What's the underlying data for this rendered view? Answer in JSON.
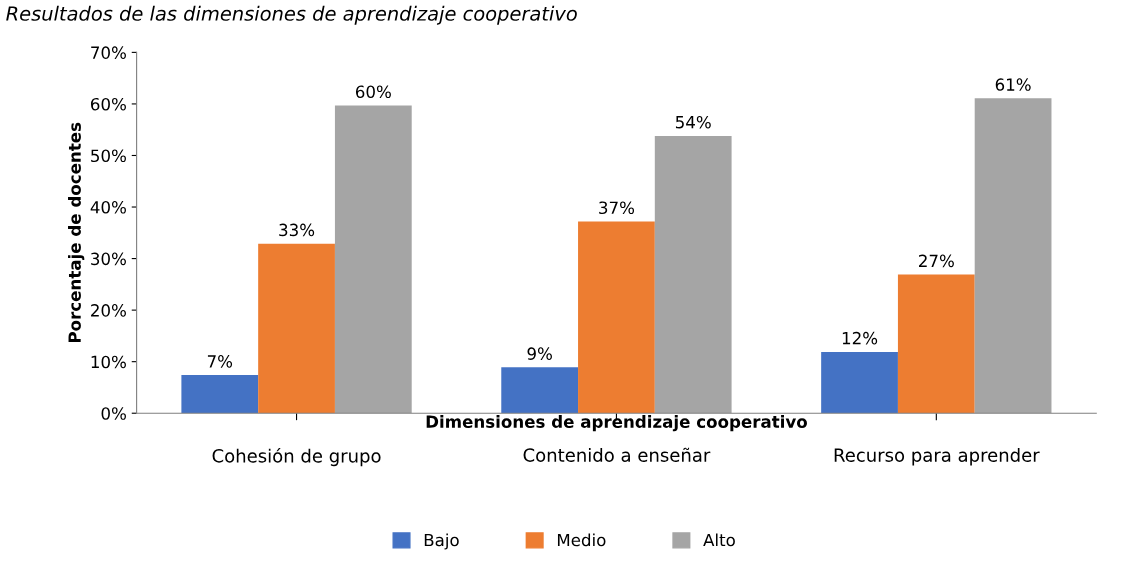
{
  "chart_data": {
    "type": "bar",
    "title": "Resultados de las dimensiones de aprendizaje cooperativo",
    "xlabel": "Dimensiones de aprendizaje cooperativo",
    "ylabel": "Porcentaje de docentes",
    "categories": [
      "Cohesión de grupo",
      "Contenido a enseñar",
      "Recurso para aprender"
    ],
    "series": [
      {
        "name": "Bajo",
        "color": "#4472c4",
        "values": [
          7.4,
          8.9,
          11.9
        ],
        "value_labels": [
          "7%",
          "9%",
          "12%"
        ]
      },
      {
        "name": "Medio",
        "color": "#ed7d31",
        "values": [
          32.9,
          37.2,
          26.9
        ],
        "value_labels": [
          "33%",
          "37%",
          "27%"
        ]
      },
      {
        "name": "Alto",
        "color": "#a5a5a5",
        "values": [
          59.7,
          53.8,
          61.1
        ],
        "value_labels": [
          "60%",
          "54%",
          "61%"
        ]
      }
    ],
    "ylim": [
      0,
      70
    ],
    "yticks": [
      {
        "value": 0,
        "label": "0%"
      },
      {
        "value": 10,
        "label": "10%"
      },
      {
        "value": 20,
        "label": "20%"
      },
      {
        "value": 30,
        "label": "30%"
      },
      {
        "value": 40,
        "label": "40%"
      },
      {
        "value": 50,
        "label": "50%"
      },
      {
        "value": 60,
        "label": "60%"
      },
      {
        "value": 70,
        "label": "70%"
      }
    ],
    "grid": false,
    "legend": "bottom"
  }
}
